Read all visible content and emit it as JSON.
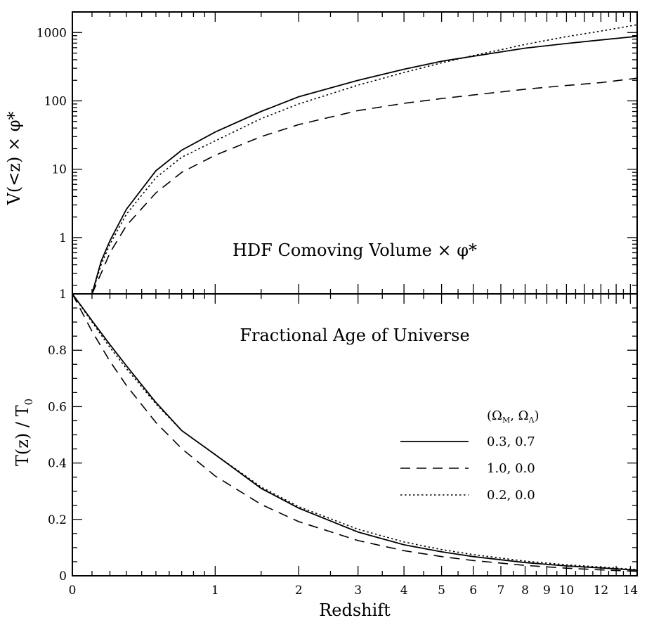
{
  "chart_data": [
    {
      "type": "line",
      "title": "HDF Comoving Volume × φ*",
      "ylabel": "V(<z) × φ*",
      "yscale": "log",
      "ylim": [
        0.15,
        2000
      ],
      "xlim": [
        0,
        14.5
      ],
      "yticks": [
        {
          "v": 1,
          "label": "1"
        },
        {
          "v": 10,
          "label": "10"
        },
        {
          "v": 100,
          "label": "100"
        },
        {
          "v": 1000,
          "label": "1000"
        }
      ],
      "series": [
        {
          "key": "lcdm",
          "style": "solid",
          "x": [
            0.1,
            0.15,
            0.2,
            0.3,
            0.5,
            0.7,
            1.0,
            1.5,
            2.0,
            3.0,
            4.0,
            5.0,
            6.0,
            7.0,
            8.0,
            10.0,
            12.0,
            14.5
          ],
          "values": [
            0.15,
            0.45,
            0.9,
            2.6,
            9.5,
            19,
            35,
            70,
            115,
            200,
            290,
            380,
            450,
            520,
            590,
            690,
            780,
            880
          ]
        },
        {
          "key": "eds",
          "style": "dashed",
          "x": [
            0.1,
            0.15,
            0.2,
            0.3,
            0.5,
            0.7,
            1.0,
            1.5,
            2.0,
            3.0,
            4.0,
            5.0,
            6.0,
            7.0,
            8.0,
            10.0,
            12.0,
            14.5
          ],
          "values": [
            0.15,
            0.3,
            0.6,
            1.5,
            4.5,
            9,
            16,
            30,
            45,
            72,
            92,
            108,
            122,
            135,
            148,
            168,
            185,
            215
          ]
        },
        {
          "key": "open",
          "style": "dotted",
          "x": [
            0.1,
            0.15,
            0.2,
            0.3,
            0.5,
            0.7,
            1.0,
            1.5,
            2.0,
            3.0,
            4.0,
            5.0,
            6.0,
            7.0,
            8.0,
            10.0,
            12.0,
            14.5
          ],
          "values": [
            0.15,
            0.4,
            0.8,
            2.2,
            7.5,
            15,
            26,
            55,
            90,
            170,
            260,
            360,
            460,
            560,
            670,
            870,
            1050,
            1300
          ]
        }
      ]
    },
    {
      "type": "line",
      "title": "Fractional Age of Universe",
      "xlabel": "Redshift",
      "ylabel_main": "T(z) / T",
      "ylabel_sub": "0",
      "ylim": [
        0,
        1
      ],
      "xlim": [
        0,
        14.5
      ],
      "xticks": [
        {
          "v": 0,
          "label": "0"
        },
        {
          "v": 1,
          "label": "1"
        },
        {
          "v": 2,
          "label": "2"
        },
        {
          "v": 3,
          "label": "3"
        },
        {
          "v": 4,
          "label": "4"
        },
        {
          "v": 5,
          "label": "5"
        },
        {
          "v": 6,
          "label": "6"
        },
        {
          "v": 7,
          "label": "7"
        },
        {
          "v": 8,
          "label": "8"
        },
        {
          "v": 9,
          "label": "9"
        },
        {
          "v": 10,
          "label": "10"
        },
        {
          "v": 12,
          "label": "12"
        },
        {
          "v": 14,
          "label": "14"
        }
      ],
      "yticks": [
        {
          "v": 0,
          "label": "0"
        },
        {
          "v": 0.2,
          "label": "0.2"
        },
        {
          "v": 0.4,
          "label": "0.4"
        },
        {
          "v": 0.6,
          "label": "0.6"
        },
        {
          "v": 0.8,
          "label": "0.8"
        },
        {
          "v": 1,
          "label": "1"
        }
      ],
      "series": [
        {
          "key": "lcdm",
          "style": "solid",
          "x": [
            0,
            0.1,
            0.2,
            0.3,
            0.5,
            0.7,
            1.0,
            1.5,
            2.0,
            3.0,
            4.0,
            5.0,
            6.0,
            8.0,
            10.0,
            12.0,
            14.5
          ],
          "values": [
            1.0,
            0.905,
            0.82,
            0.745,
            0.615,
            0.515,
            0.43,
            0.31,
            0.24,
            0.155,
            0.11,
            0.085,
            0.068,
            0.047,
            0.035,
            0.028,
            0.02
          ]
        },
        {
          "key": "eds",
          "style": "dashed",
          "x": [
            0,
            0.1,
            0.2,
            0.3,
            0.5,
            0.7,
            1.0,
            1.5,
            2.0,
            3.0,
            4.0,
            5.0,
            6.0,
            8.0,
            10.0,
            12.0,
            14.5
          ],
          "values": [
            1.0,
            0.867,
            0.761,
            0.675,
            0.544,
            0.451,
            0.354,
            0.253,
            0.192,
            0.125,
            0.089,
            0.068,
            0.054,
            0.037,
            0.027,
            0.021,
            0.016
          ]
        },
        {
          "key": "open",
          "style": "dotted",
          "x": [
            0,
            0.1,
            0.2,
            0.3,
            0.5,
            0.7,
            1.0,
            1.5,
            2.0,
            3.0,
            4.0,
            5.0,
            6.0,
            8.0,
            10.0,
            12.0,
            14.5
          ],
          "values": [
            1.0,
            0.9,
            0.81,
            0.735,
            0.61,
            0.515,
            0.43,
            0.315,
            0.245,
            0.165,
            0.12,
            0.093,
            0.075,
            0.052,
            0.039,
            0.031,
            0.022
          ]
        }
      ]
    }
  ],
  "legend": {
    "header": "(Ω",
    "header_sub1": "M",
    "header_mid": ", Ω",
    "header_sub2": "Λ",
    "header_end": ")",
    "entries": [
      {
        "key": "lcdm",
        "style": "solid",
        "label": "0.3, 0.7"
      },
      {
        "key": "eds",
        "style": "dashed",
        "label": "1.0, 0.0"
      },
      {
        "key": "open",
        "style": "dotted",
        "label": "0.2, 0.0"
      }
    ]
  }
}
